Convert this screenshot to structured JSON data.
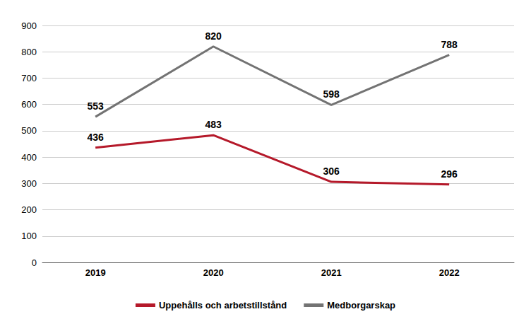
{
  "chart_data": {
    "type": "line",
    "x": [
      2019,
      2020,
      2021,
      2022
    ],
    "series": [
      {
        "name": "Uppehålls och arbetstillstånd",
        "color": "#b5192a",
        "values": [
          436,
          483,
          306,
          296
        ]
      },
      {
        "name": "Medborgarskap",
        "color": "#737373",
        "values": [
          553,
          820,
          598,
          788
        ]
      }
    ],
    "xlim": [
      2018.55,
      2022.55
    ],
    "xticks": [
      2019,
      2020,
      2021,
      2022
    ],
    "ylim": [
      0,
      900
    ],
    "yticks": [
      0,
      100,
      200,
      300,
      400,
      500,
      600,
      700,
      800,
      900
    ],
    "grid": true,
    "data_labels": true,
    "legend": "bottom"
  }
}
